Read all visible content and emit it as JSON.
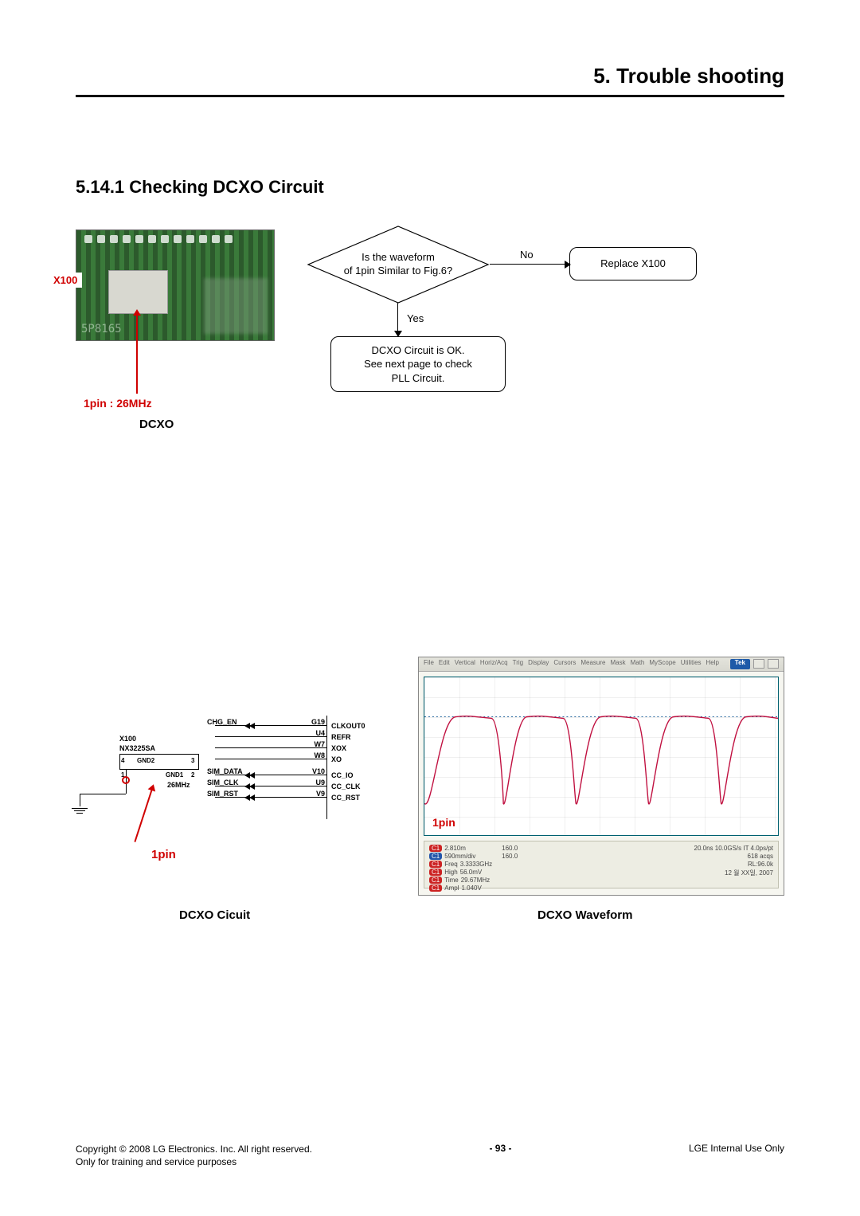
{
  "chapter_title": "5. Trouble shooting",
  "section_title": "5.14.1 Checking DCXO Circuit",
  "pcb": {
    "label": "X100",
    "pin_label": "1pin : 26MHz",
    "dcxo_label": "DCXO",
    "chip_text": "5P8165"
  },
  "flowchart": {
    "decision_line1": "Is the waveform",
    "decision_line2": "of 1pin Similar to Fig.6?",
    "yes": "Yes",
    "no": "No",
    "replace": "Replace X100",
    "ok_line1": "DCXO Circuit is OK.",
    "ok_line2": "See next page to check",
    "ok_line3": "PLL Circuit."
  },
  "circuit": {
    "part": "X100",
    "part_type": "NX3225SA",
    "freq": "26MHz",
    "gnd1": "GND2",
    "gnd2": "GND1",
    "pinA": "4",
    "pinB": "3",
    "pinC": "1",
    "pinD": "2",
    "pin1": "1pin",
    "signals": [
      {
        "name": "CHG_EN",
        "pin": "G19",
        "out": "CLKOUT0"
      },
      {
        "name": "",
        "pin": "U4",
        "out": "REFR"
      },
      {
        "name": "",
        "pin": "W7",
        "out": "XOX"
      },
      {
        "name": "",
        "pin": "W8",
        "out": "XO"
      },
      {
        "name": "SIM_DATA",
        "pin": "V10",
        "out": "CC_IO"
      },
      {
        "name": "SIM_CLK",
        "pin": "U9",
        "out": "CC_CLK"
      },
      {
        "name": "SIM_RST",
        "pin": "V9",
        "out": "CC_RST"
      }
    ]
  },
  "waveform": {
    "pin1": "1pin",
    "tek": "Tek",
    "menu": [
      "File",
      "Edit",
      "Vertical",
      "Horiz/Acq",
      "Trig",
      "Display",
      "Cursors",
      "Measure",
      "Mask",
      "Math",
      "MyScope",
      "Utilities",
      "Help"
    ],
    "wave_color": "#c01040",
    "baseline_color": "#2a6aa0",
    "info": {
      "ch1": "2.810m",
      "ch2": "590mm/div",
      "freq": "3.3333GHz",
      "high": "56.0mV",
      "time": "29.67MHz",
      "ampl": "1.040V",
      "hdiv": "160.0",
      "tdiv": "160.0",
      "right1": "20.0ns  10.0GS/s  IT  4.0ps/pt",
      "right2": "618 acqs",
      "right3": "RL:96.0k",
      "right4": "12 월 XX일, 2007"
    }
  },
  "captions": {
    "circuit": "DCXO Cicuit",
    "waveform": "DCXO Waveform"
  },
  "footer": {
    "copyright": "Copyright © 2008 LG Electronics. Inc.  All right reserved.",
    "note": "Only for training and service purposes",
    "page": "- 93 -",
    "right": "LGE Internal Use Only"
  },
  "colors": {
    "red": "#d00000",
    "black": "#000000"
  }
}
